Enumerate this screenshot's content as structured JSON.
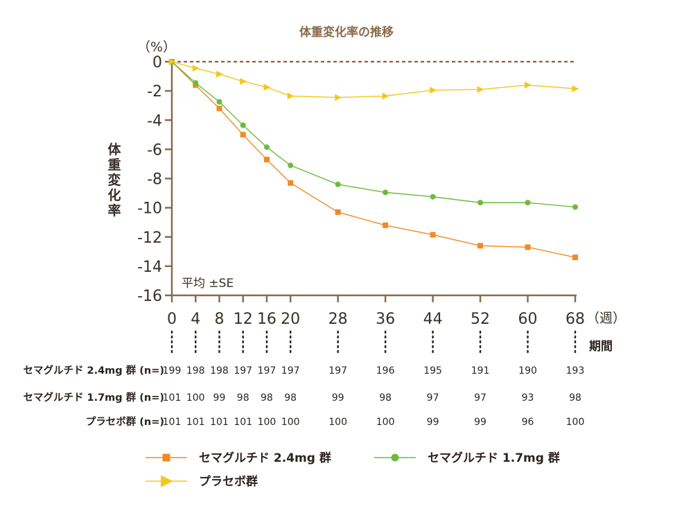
{
  "chart_data": {
    "type": "line",
    "title": "体重変化率の推移",
    "ylabel": "体重変化率",
    "y_unit": "（%）",
    "x_unit": "（週）",
    "period_label": "期間",
    "note": "平均 ±SE",
    "ylim": [
      -16,
      0
    ],
    "yticks": [
      0,
      -2,
      -4,
      -6,
      -8,
      -10,
      -12,
      -14,
      -16
    ],
    "x": [
      0,
      4,
      8,
      12,
      16,
      20,
      28,
      36,
      44,
      52,
      60,
      68
    ],
    "series": [
      {
        "name": "セマグルチド 2.4mg 群",
        "color": "#f08a24",
        "marker": "square",
        "values": [
          0,
          -1.6,
          -3.2,
          -5.0,
          -6.7,
          -8.3,
          -10.3,
          -11.2,
          -11.85,
          -12.6,
          -12.7,
          -13.4
        ]
      },
      {
        "name": "セマグルチド 1.7mg 群",
        "color": "#6cbb3c",
        "marker": "circle",
        "values": [
          0,
          -1.45,
          -2.75,
          -4.35,
          -5.85,
          -7.1,
          -8.4,
          -8.95,
          -9.25,
          -9.65,
          -9.65,
          -9.95
        ]
      },
      {
        "name": "プラセボ群",
        "color": "#f2c81e",
        "marker": "triangle",
        "values": [
          0,
          -0.45,
          -0.85,
          -1.35,
          -1.75,
          -2.35,
          -2.45,
          -2.35,
          -1.95,
          -1.9,
          -1.6,
          -1.85
        ]
      }
    ],
    "n_table": {
      "rows": [
        {
          "label": "セマグルチド 2.4mg 群 (n=)",
          "values": [
            "199",
            "198",
            "198",
            "197",
            "197",
            "197",
            "197",
            "196",
            "195",
            "191",
            "190",
            "193"
          ]
        },
        {
          "label": "セマグルチド 1.7mg 群 (n=)",
          "values": [
            "101",
            "100",
            "99",
            "98",
            "98",
            "98",
            "99",
            "98",
            "97",
            "97",
            "93",
            "98"
          ]
        },
        {
          "label": "プラセボ群 (n=)",
          "values": [
            "101",
            "101",
            "101",
            "101",
            "100",
            "100",
            "100",
            "100",
            "99",
            "99",
            "96",
            "100"
          ]
        }
      ]
    },
    "legend": [
      {
        "label": "セマグルチド 2.4mg 群",
        "color": "#f08a24",
        "marker": "square"
      },
      {
        "label": "セマグルチド 1.7mg 群",
        "color": "#6cbb3c",
        "marker": "circle"
      },
      {
        "label": "プラセボ群",
        "color": "#f2c81e",
        "marker": "triangle"
      }
    ],
    "axis_color": "#8a6a4c",
    "grid": false
  }
}
